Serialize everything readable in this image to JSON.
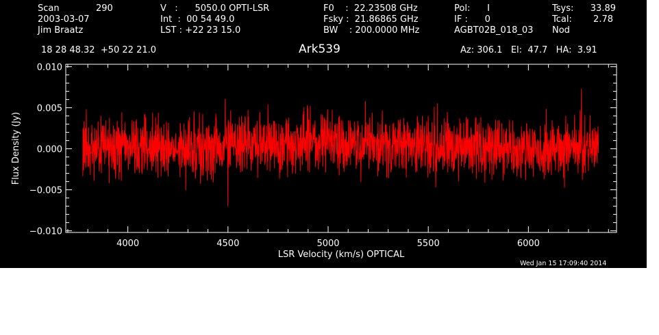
{
  "header": {
    "col1": [
      "Scan",
      "2003-03-07",
      "Jim Braatz"
    ],
    "scan_number": "290",
    "col2": [
      "V   :      5050.0 OPTI-LSR",
      "Int  :  00 54 49.0",
      "LST : +22 23 15.0"
    ],
    "col3": [
      "F0    :  22.23508 GHz",
      "Fsky :  21.86865 GHz",
      "BW    : 200.0000 MHz"
    ],
    "col4": [
      "Pol:      I",
      "IF :      0",
      "AGBT02B_018_03"
    ],
    "tsys_label": "Tsys:",
    "tsys_value": "33.89",
    "tcal_label": "Tcal:",
    "tcal_value": "2.78",
    "mode": "Nod",
    "coords": "18 28 48.32  +50 22 21.0",
    "source": "Ark539",
    "pointing": "Az: 306.1   El:  47.7   HA:  3.91"
  },
  "footer": {
    "timestamp": "Wed Jan 15 17:09:40 2014"
  },
  "colors": {
    "background": "#000000",
    "axes": "#ffffff",
    "trace": "#ff0000",
    "page": "#ffffff"
  },
  "chart_data": {
    "type": "line",
    "title": "Ark539",
    "xlabel": "LSR Velocity (km/s) OPTICAL",
    "ylabel": "Flux Density (Jy)",
    "xlim": [
      3690,
      6440
    ],
    "ylim": [
      -0.0102,
      0.0103
    ],
    "x_ticks": [
      4000,
      4500,
      5000,
      5500,
      6000
    ],
    "x_tick_labels": [
      "4000",
      "4500",
      "5000",
      "5500",
      "6000"
    ],
    "y_ticks": [
      -0.01,
      -0.005,
      0.0,
      0.005,
      0.01
    ],
    "y_tick_labels": [
      "−0.010",
      "−0.005",
      "0.000",
      "0.005",
      "0.010"
    ],
    "grid": false,
    "series": [
      {
        "x_start": 3775,
        "x_end": 6350,
        "approx_baseline_trend": {
          "x": [
            3775,
            4300,
            5000,
            5500,
            6000,
            6350
          ],
          "y": [
            0.0003,
            0.0002,
            0.001,
            0.0004,
            0.0,
            0.0005
          ]
        },
        "approx_noise_rms": 0.002,
        "approx_max": {
          "x": 6265,
          "y": 0.0073
        },
        "approx_min": {
          "x": 4500,
          "y": -0.007
        }
      }
    ]
  }
}
